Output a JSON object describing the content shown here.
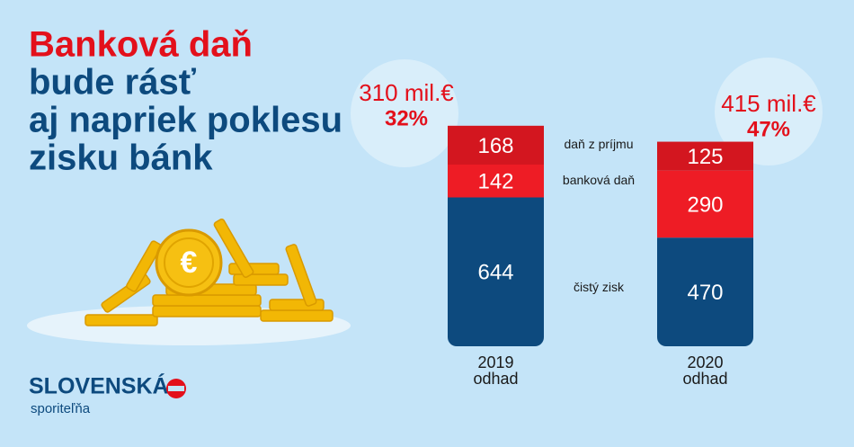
{
  "chart_data": {
    "type": "stacked-bar",
    "title_lines": [
      "Banková daň",
      "bude rásť",
      "aj napriek poklesu",
      "zisku bánk"
    ],
    "title_colors": [
      "#e3101b",
      "#0d4a7e",
      "#0d4a7e",
      "#0d4a7e"
    ],
    "categories": [
      "2019",
      "2020"
    ],
    "category_sublabels": [
      "odhad",
      "odhad"
    ],
    "series": [
      {
        "name": "čistý zisk",
        "color": "#0d4a7e",
        "values": [
          644,
          470
        ]
      },
      {
        "name": "banková daň",
        "color": "#ee1c25",
        "values": [
          142,
          290
        ]
      },
      {
        "name": "daň z príjmu",
        "color": "#d3161f",
        "values": [
          168,
          125
        ]
      }
    ],
    "annotations": [
      {
        "total": "310 mil.€",
        "share": "32%"
      },
      {
        "total": "415 mil.€",
        "share": "47%"
      }
    ],
    "annotation_color": "#e3101b",
    "logo": {
      "brand": "SLOVENSKÁ",
      "sub": "sporiteľňa"
    }
  }
}
